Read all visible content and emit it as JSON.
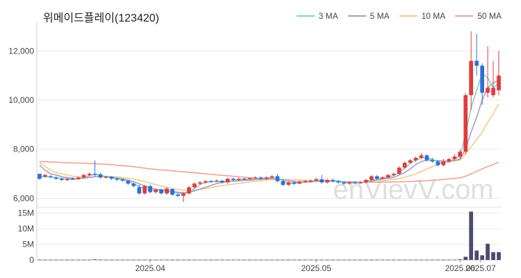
{
  "title": "위메이드플레이(123420)",
  "watermark": "enVievV.com",
  "colors": {
    "up": "#e33b3b",
    "down": "#2f6fd6",
    "volume": "#4b4b6e",
    "grid": "#e9e9e9"
  },
  "chart_data": {
    "type": "candlestick",
    "price_axis": {
      "ticks": [
        "12,000",
        "10,000",
        "8,000",
        "6,000"
      ],
      "tick_values": [
        12000,
        10000,
        8000,
        6000
      ],
      "range": [
        5700,
        13000
      ]
    },
    "volume_axis": {
      "ticks": [
        "15M",
        "10M",
        "5M",
        "0"
      ],
      "tick_values": [
        15,
        10,
        5,
        0
      ],
      "range": [
        0,
        16.5
      ]
    },
    "x_axis": {
      "ticks": [
        "2025.04",
        "2025.05",
        "2025.06",
        "2025.07"
      ],
      "tick_index": [
        20,
        50,
        76,
        107
      ]
    },
    "legend": [
      {
        "label": "3 MA",
        "color": "#7fd3c4"
      },
      {
        "label": "5 MA",
        "color": "#a99bc9"
      },
      {
        "label": "10 MA",
        "color": "#f2c98e"
      },
      {
        "label": "50 MA",
        "color": "#f0a294"
      }
    ],
    "candles": [
      [
        7000,
        6800,
        7000,
        6750
      ],
      [
        6880,
        6950,
        7000,
        6850
      ],
      [
        6900,
        6870,
        6950,
        6820
      ],
      [
        6850,
        6800,
        6900,
        6750
      ],
      [
        6800,
        6750,
        6850,
        6700
      ],
      [
        6750,
        6800,
        6850,
        6700
      ],
      [
        6800,
        6780,
        6850,
        6750
      ],
      [
        6780,
        6850,
        6900,
        6750
      ],
      [
        6850,
        6950,
        7000,
        6800
      ],
      [
        6950,
        7000,
        7050,
        6900
      ],
      [
        7000,
        6980,
        7550,
        6900
      ],
      [
        6980,
        6850,
        7050,
        6800
      ],
      [
        6850,
        6880,
        6920,
        6800
      ],
      [
        6880,
        6800,
        6900,
        6750
      ],
      [
        6800,
        6780,
        6850,
        6700
      ],
      [
        6780,
        6720,
        6800,
        6680
      ],
      [
        6720,
        6600,
        6750,
        6550
      ],
      [
        6600,
        6500,
        6650,
        6450
      ],
      [
        6450,
        6200,
        6550,
        6150
      ],
      [
        6200,
        6500,
        6550,
        6150
      ],
      [
        6500,
        6250,
        6550,
        6200
      ],
      [
        6250,
        6350,
        6400,
        6200
      ],
      [
        6350,
        6200,
        6400,
        6150
      ],
      [
        6200,
        6400,
        6450,
        6150
      ],
      [
        6380,
        6150,
        6400,
        6100
      ],
      [
        6150,
        6100,
        6200,
        6050
      ],
      [
        6100,
        6200,
        6250,
        5850
      ],
      [
        6200,
        6450,
        6500,
        6150
      ],
      [
        6450,
        6600,
        6650,
        6400
      ],
      [
        6600,
        6650,
        6700,
        6550
      ],
      [
        6650,
        6700,
        6750,
        6600
      ],
      [
        6700,
        6680,
        6750,
        6650
      ],
      [
        6680,
        6720,
        6780,
        6650
      ],
      [
        6720,
        6650,
        6750,
        6600
      ],
      [
        6650,
        6800,
        6850,
        6600
      ],
      [
        6800,
        6750,
        6850,
        6700
      ],
      [
        6750,
        6800,
        6850,
        6700
      ],
      [
        6800,
        6780,
        6850,
        6750
      ],
      [
        6780,
        6820,
        6850,
        6750
      ],
      [
        6820,
        6850,
        6900,
        6800
      ],
      [
        6850,
        6800,
        6900,
        6750
      ],
      [
        6800,
        6850,
        6900,
        6750
      ],
      [
        6850,
        6900,
        6950,
        6800
      ],
      [
        6900,
        6700,
        7000,
        6650
      ],
      [
        6700,
        6550,
        6750,
        6500
      ],
      [
        6550,
        6650,
        6700,
        6500
      ],
      [
        6650,
        6600,
        6700,
        6550
      ],
      [
        6600,
        6680,
        6720,
        6580
      ],
      [
        6680,
        6700,
        6750,
        6650
      ],
      [
        6700,
        6720,
        6780,
        6650
      ],
      [
        6720,
        6780,
        6850,
        6700
      ],
      [
        6780,
        6650,
        6950,
        6600
      ],
      [
        6650,
        6750,
        6800,
        6600
      ],
      [
        6750,
        6700,
        6800,
        6650
      ],
      [
        6700,
        6650,
        6750,
        6600
      ],
      [
        6650,
        6600,
        6700,
        6550
      ],
      [
        6600,
        6650,
        6700,
        6550
      ],
      [
        6650,
        6620,
        6700,
        6600
      ],
      [
        6620,
        6650,
        6700,
        6600
      ],
      [
        6650,
        6750,
        6800,
        6600
      ],
      [
        6750,
        6900,
        6950,
        6700
      ],
      [
        6900,
        6800,
        6950,
        6750
      ],
      [
        6800,
        6850,
        6900,
        6750
      ],
      [
        6850,
        6950,
        7000,
        6800
      ],
      [
        6950,
        7000,
        7050,
        6900
      ],
      [
        7000,
        7250,
        7300,
        6950
      ],
      [
        7250,
        7450,
        7500,
        7200
      ],
      [
        7450,
        7550,
        7600,
        7400
      ],
      [
        7550,
        7650,
        7700,
        7500
      ],
      [
        7650,
        7750,
        7850,
        7600
      ],
      [
        7750,
        7550,
        7800,
        7500
      ],
      [
        7550,
        7500,
        7650,
        7450
      ],
      [
        7500,
        7350,
        7550,
        7300
      ],
      [
        7350,
        7500,
        7600,
        7300
      ],
      [
        7500,
        7600,
        7650,
        7450
      ],
      [
        7600,
        7700,
        7800,
        7550
      ],
      [
        7700,
        7900,
        8000,
        7600
      ],
      [
        7900,
        10200,
        10300,
        7800
      ],
      [
        10200,
        11600,
        12800,
        9600
      ],
      [
        11600,
        11400,
        12700,
        11000
      ],
      [
        11400,
        10300,
        11500,
        9800
      ],
      [
        10300,
        10500,
        12200,
        10100
      ],
      [
        10200,
        10500,
        11600,
        10100
      ],
      [
        10400,
        11000,
        12000,
        10200
      ]
    ],
    "volumes": [
      0.1,
      0.1,
      0.1,
      0.1,
      0.1,
      0.1,
      0.1,
      0.1,
      0.1,
      0.1,
      0.2,
      0.1,
      0.1,
      0.1,
      0.1,
      0.1,
      0.1,
      0.1,
      0.1,
      0.1,
      0.1,
      0.1,
      0.1,
      0.1,
      0.1,
      0.1,
      0.1,
      0.1,
      0.1,
      0.1,
      0.1,
      0.1,
      0.1,
      0.1,
      0.1,
      0.1,
      0.1,
      0.1,
      0.1,
      0.1,
      0.1,
      0.1,
      0.1,
      0.1,
      0.1,
      0.1,
      0.1,
      0.1,
      0.1,
      0.1,
      0.1,
      0.1,
      0.1,
      0.1,
      0.1,
      0.1,
      0.1,
      0.1,
      0.1,
      0.1,
      0.1,
      0.1,
      0.1,
      0.1,
      0.1,
      0.1,
      0.1,
      0.1,
      0.1,
      0.1,
      0.1,
      0.1,
      0.1,
      0.1,
      0.1,
      0.1,
      0.2,
      1.0,
      15.5,
      3.0,
      1.5,
      5.2,
      2.5,
      2.5
    ],
    "ma3": [
      6900,
      6880,
      6870,
      6840,
      6800,
      6780,
      6780,
      6800,
      6850,
      6930,
      6980,
      6950,
      6880,
      6840,
      6800,
      6770,
      6700,
      6600,
      6480,
      6400,
      6330,
      6350,
      6300,
      6300,
      6250,
      6200,
      6180,
      6250,
      6400,
      6560,
      6650,
      6680,
      6700,
      6690,
      6700,
      6720,
      6760,
      6780,
      6790,
      6810,
      6820,
      6830,
      6850,
      6800,
      6720,
      6630,
      6600,
      6640,
      6660,
      6700,
      6730,
      6730,
      6720,
      6720,
      6690,
      6650,
      6630,
      6630,
      6640,
      6670,
      6750,
      6800,
      6850,
      6870,
      6920,
      7050,
      7230,
      7420,
      7550,
      7650,
      7650,
      7600,
      7480,
      7450,
      7480,
      7600,
      7730,
      8600,
      9700,
      10400,
      11100,
      10900,
      10500,
      10700
    ],
    "ma5": [
      7350,
      7150,
      7000,
      6950,
      6880,
      6850,
      6820,
      6800,
      6820,
      6850,
      6880,
      6900,
      6890,
      6870,
      6830,
      6790,
      6740,
      6680,
      6590,
      6500,
      6420,
      6380,
      6350,
      6330,
      6290,
      6250,
      6230,
      6250,
      6300,
      6380,
      6450,
      6530,
      6600,
      6650,
      6680,
      6700,
      6710,
      6730,
      6740,
      6760,
      6780,
      6790,
      6800,
      6790,
      6760,
      6720,
      6680,
      6660,
      6650,
      6670,
      6690,
      6700,
      6710,
      6710,
      6700,
      6680,
      6660,
      6650,
      6650,
      6660,
      6700,
      6750,
      6800,
      6820,
      6850,
      6950,
      7050,
      7200,
      7380,
      7500,
      7560,
      7560,
      7540,
      7520,
      7520,
      7540,
      7600,
      8000,
      8700,
      9300,
      10000,
      10500,
      10700,
      10800
    ],
    "ma10": [
      7450,
      7300,
      7150,
      7050,
      7000,
      6950,
      6900,
      6880,
      6870,
      6870,
      6880,
      6890,
      6890,
      6880,
      6870,
      6850,
      6820,
      6790,
      6740,
      6680,
      6620,
      6560,
      6500,
      6450,
      6400,
      6360,
      6330,
      6320,
      6330,
      6360,
      6400,
      6440,
      6480,
      6520,
      6550,
      6580,
      6610,
      6640,
      6670,
      6700,
      6720,
      6740,
      6760,
      6770,
      6770,
      6760,
      6750,
      6730,
      6710,
      6700,
      6690,
      6690,
      6690,
      6690,
      6690,
      6680,
      6670,
      6670,
      6670,
      6670,
      6680,
      6690,
      6710,
      6740,
      6770,
      6810,
      6860,
      6920,
      7000,
      7100,
      7200,
      7300,
      7380,
      7440,
      7480,
      7520,
      7560,
      7800,
      8100,
      8400,
      8700,
      9100,
      9450,
      9850
    ],
    "ma50": [
      7500,
      7490,
      7480,
      7470,
      7460,
      7450,
      7440,
      7440,
      7430,
      7420,
      7410,
      7400,
      7390,
      7370,
      7350,
      7330,
      7310,
      7290,
      7260,
      7230,
      7200,
      7180,
      7160,
      7140,
      7120,
      7100,
      7080,
      7060,
      7040,
      7020,
      7000,
      6980,
      6960,
      6940,
      6920,
      6900,
      6880,
      6860,
      6840,
      6820,
      6810,
      6800,
      6790,
      6780,
      6770,
      6760,
      6750,
      6740,
      6730,
      6720,
      6710,
      6700,
      6700,
      6690,
      6680,
      6680,
      6670,
      6670,
      6660,
      6660,
      6660,
      6660,
      6660,
      6660,
      6670,
      6670,
      6680,
      6690,
      6700,
      6710,
      6720,
      6740,
      6750,
      6770,
      6790,
      6810,
      6840,
      6900,
      7000,
      7100,
      7200,
      7300,
      7380,
      7480
    ]
  }
}
